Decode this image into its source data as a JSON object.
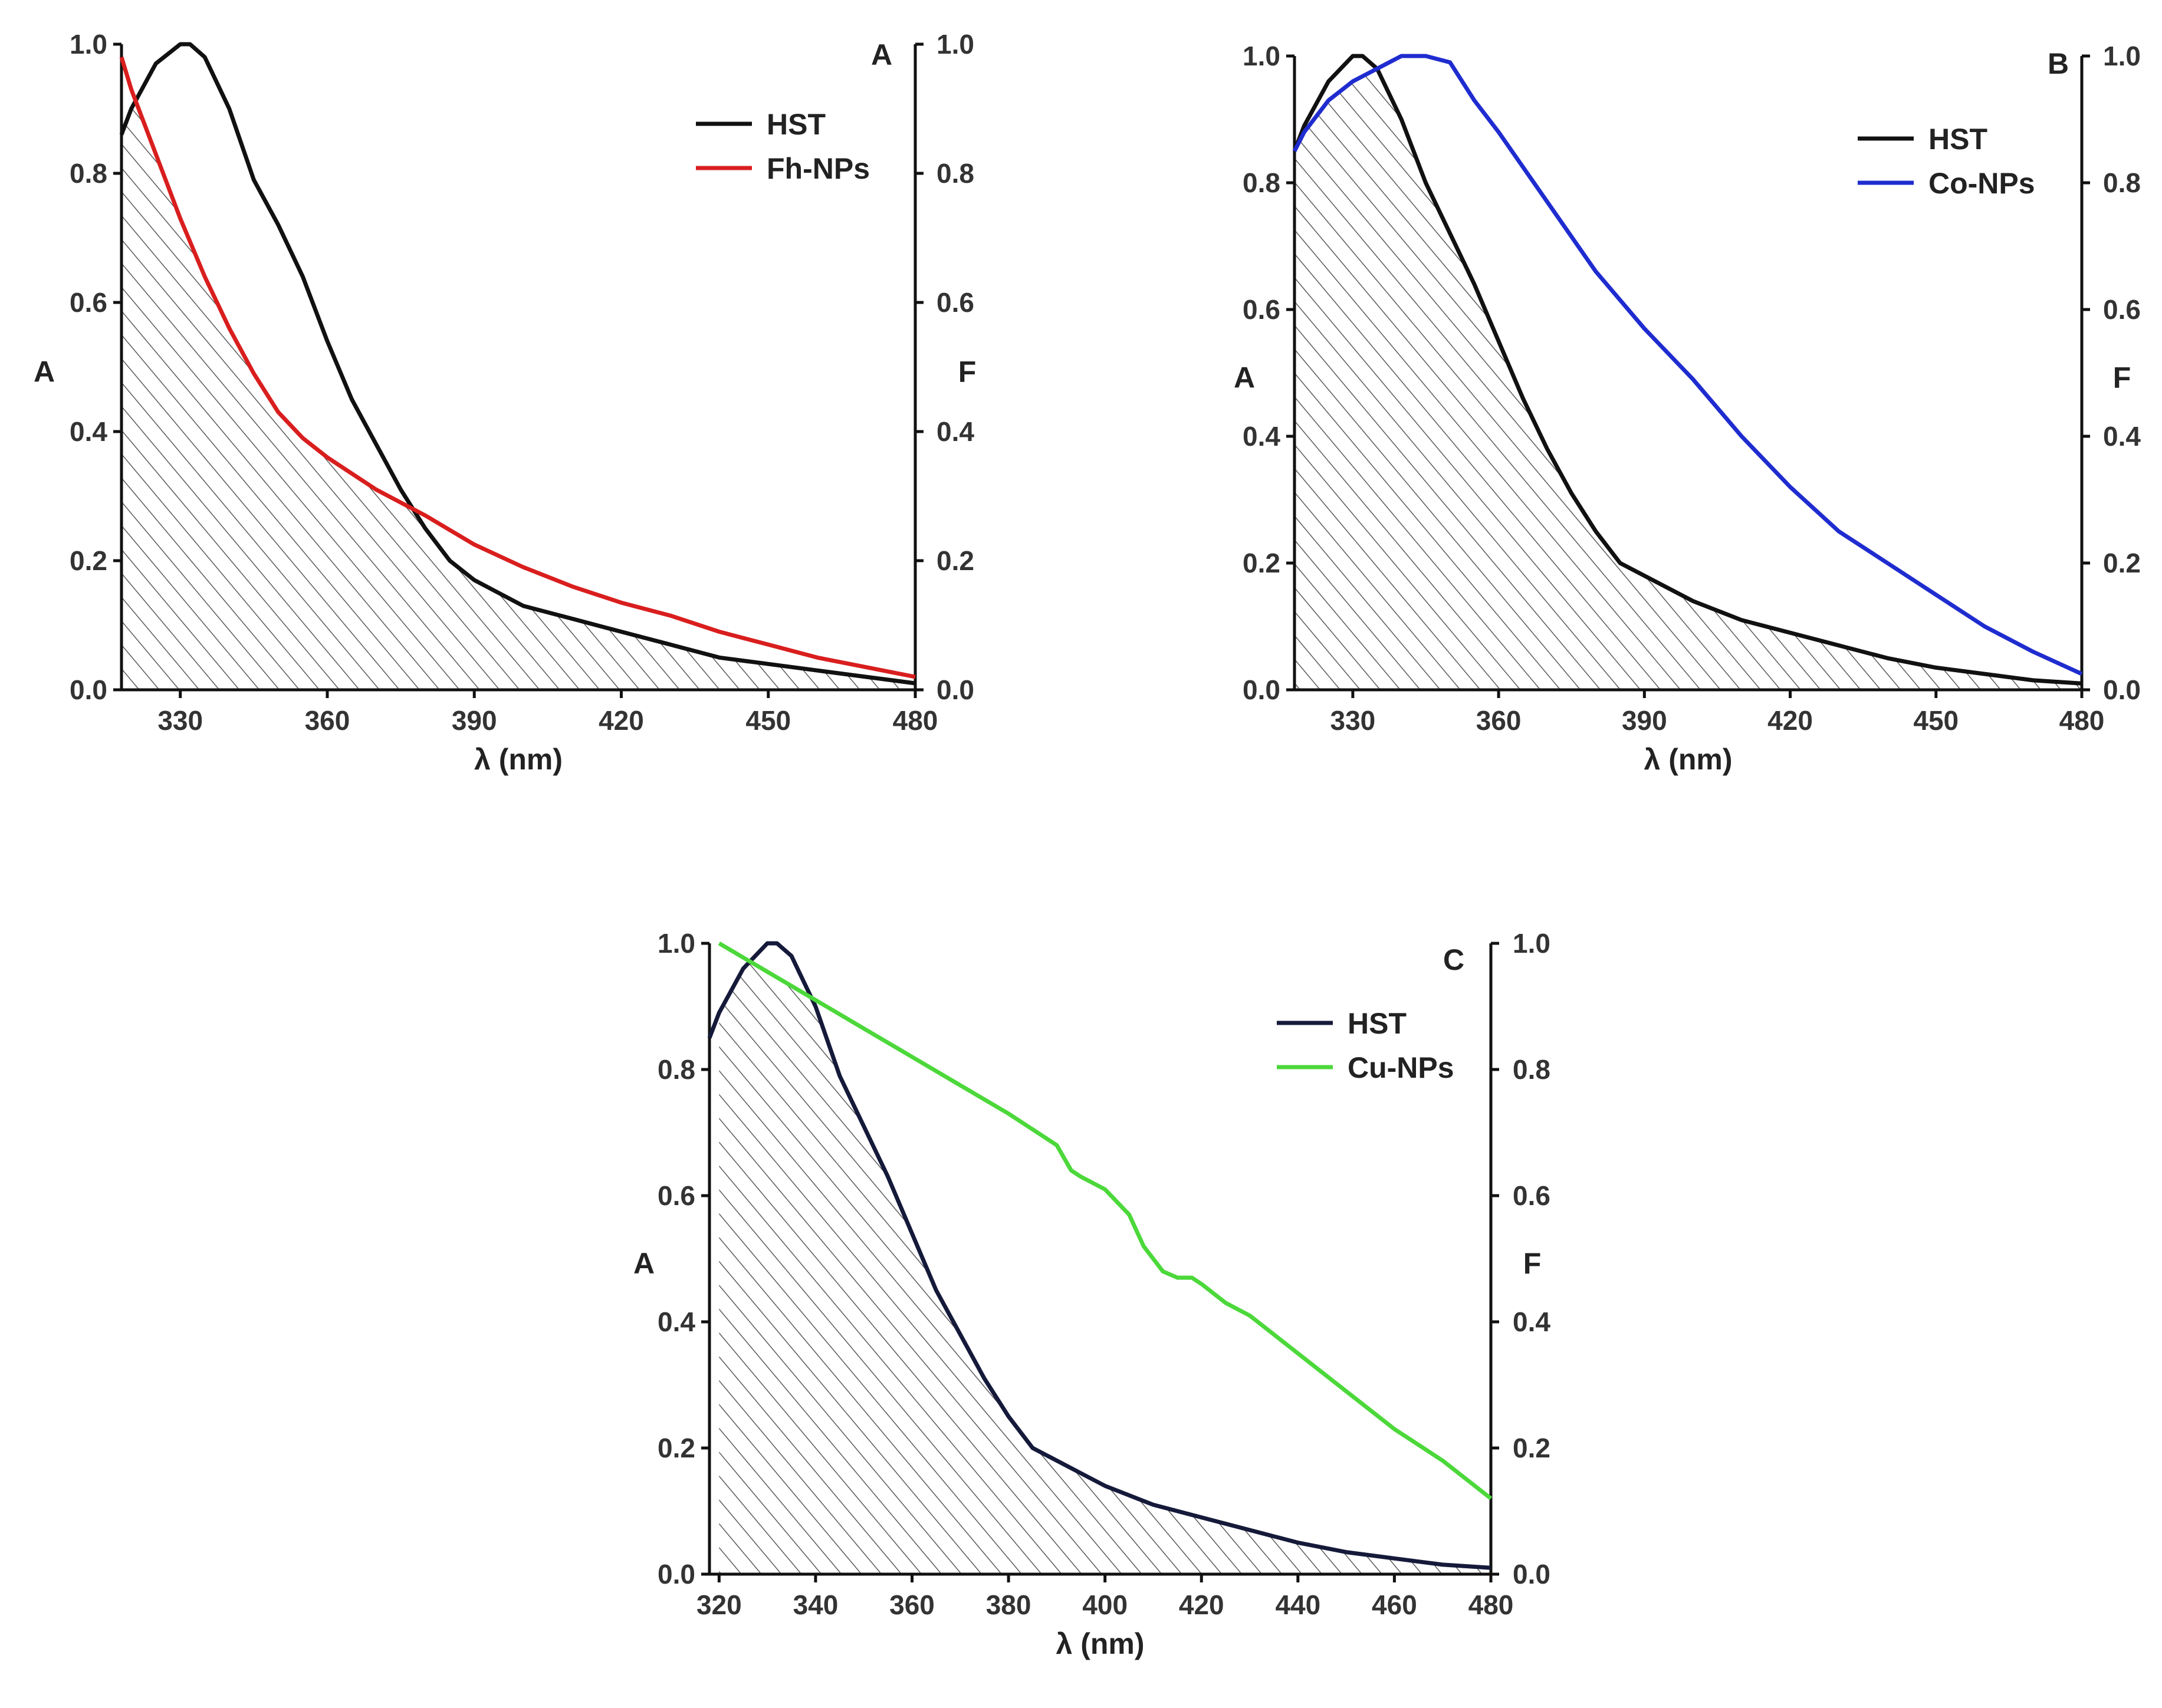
{
  "colors": {
    "hst": "#111111",
    "fh": "#d91e1e",
    "co": "#1f2ccf",
    "cu": "#4cd83a",
    "hatch": "#5a5a5a"
  },
  "chart_data": [
    {
      "type": "line",
      "panel": "A",
      "xlabel": "λ (nm)",
      "ylabel_left": "A",
      "ylabel_right": "F",
      "xlim": [
        318,
        480
      ],
      "ylim": [
        0,
        1.0
      ],
      "xticks": [
        330,
        360,
        390,
        420,
        450,
        480
      ],
      "yticks": [
        0.0,
        0.2,
        0.4,
        0.6,
        0.8,
        1.0
      ],
      "legend_position": "top-right",
      "shaded_overlap": true,
      "series": [
        {
          "name": "HST",
          "color": "#111111",
          "x": [
            318,
            320,
            325,
            330,
            332,
            335,
            340,
            345,
            350,
            355,
            360,
            365,
            370,
            375,
            380,
            385,
            390,
            395,
            400,
            405,
            410,
            420,
            430,
            440,
            450,
            460,
            470,
            480
          ],
          "y": [
            0.86,
            0.9,
            0.97,
            1.0,
            1.0,
            0.98,
            0.9,
            0.79,
            0.72,
            0.64,
            0.54,
            0.45,
            0.38,
            0.31,
            0.25,
            0.2,
            0.17,
            0.15,
            0.13,
            0.12,
            0.11,
            0.09,
            0.07,
            0.05,
            0.04,
            0.03,
            0.02,
            0.01
          ]
        },
        {
          "name": "Fh-NPs",
          "color": "#d91e1e",
          "x": [
            318,
            320,
            325,
            330,
            335,
            340,
            345,
            350,
            355,
            360,
            365,
            370,
            380,
            390,
            400,
            410,
            420,
            430,
            440,
            450,
            460,
            470,
            480
          ],
          "y": [
            0.98,
            0.93,
            0.83,
            0.73,
            0.64,
            0.56,
            0.49,
            0.43,
            0.39,
            0.36,
            0.335,
            0.31,
            0.27,
            0.225,
            0.19,
            0.16,
            0.135,
            0.115,
            0.09,
            0.07,
            0.05,
            0.035,
            0.02
          ]
        }
      ]
    },
    {
      "type": "line",
      "panel": "B",
      "xlabel": "λ (nm)",
      "ylabel_left": "A",
      "ylabel_right": "F",
      "xlim": [
        318,
        480
      ],
      "ylim": [
        0,
        1.0
      ],
      "xticks": [
        330,
        360,
        390,
        420,
        450,
        480
      ],
      "yticks": [
        0.0,
        0.2,
        0.4,
        0.6,
        0.8,
        1.0
      ],
      "legend_position": "top-right",
      "shaded_overlap": true,
      "series": [
        {
          "name": "HST",
          "color": "#111111",
          "x": [
            318,
            320,
            325,
            330,
            332,
            335,
            340,
            345,
            350,
            355,
            360,
            365,
            370,
            375,
            380,
            385,
            390,
            395,
            400,
            405,
            410,
            420,
            430,
            440,
            450,
            460,
            470,
            480
          ],
          "y": [
            0.85,
            0.89,
            0.96,
            1.0,
            1.0,
            0.98,
            0.9,
            0.8,
            0.72,
            0.64,
            0.55,
            0.46,
            0.38,
            0.31,
            0.25,
            0.2,
            0.18,
            0.16,
            0.14,
            0.125,
            0.11,
            0.09,
            0.07,
            0.05,
            0.035,
            0.025,
            0.015,
            0.01
          ]
        },
        {
          "name": "Co-NPs",
          "color": "#1f2ccf",
          "x": [
            318,
            320,
            325,
            330,
            335,
            340,
            345,
            350,
            355,
            360,
            370,
            380,
            390,
            400,
            410,
            420,
            430,
            440,
            450,
            460,
            470,
            480
          ],
          "y": [
            0.85,
            0.88,
            0.93,
            0.96,
            0.98,
            1.0,
            1.0,
            0.99,
            0.93,
            0.88,
            0.77,
            0.66,
            0.57,
            0.49,
            0.4,
            0.32,
            0.25,
            0.2,
            0.15,
            0.1,
            0.06,
            0.025
          ]
        }
      ]
    },
    {
      "type": "line",
      "panel": "C",
      "xlabel": "λ (nm)",
      "ylabel_left": "A",
      "ylabel_right": "F",
      "xlim": [
        318,
        480
      ],
      "ylim": [
        0,
        1.0
      ],
      "xticks": [
        320,
        340,
        360,
        380,
        400,
        420,
        440,
        460,
        480
      ],
      "yticks": [
        0.0,
        0.2,
        0.4,
        0.6,
        0.8,
        1.0
      ],
      "legend_position": "top-right",
      "shaded_overlap": true,
      "series": [
        {
          "name": "HST",
          "color": "#151a3a",
          "x": [
            318,
            320,
            325,
            330,
            332,
            335,
            340,
            345,
            350,
            355,
            360,
            365,
            370,
            375,
            380,
            385,
            390,
            395,
            400,
            405,
            410,
            420,
            430,
            440,
            450,
            460,
            470,
            480
          ],
          "y": [
            0.85,
            0.89,
            0.96,
            1.0,
            1.0,
            0.98,
            0.9,
            0.79,
            0.71,
            0.63,
            0.54,
            0.45,
            0.38,
            0.31,
            0.25,
            0.2,
            0.18,
            0.16,
            0.14,
            0.125,
            0.11,
            0.09,
            0.07,
            0.05,
            0.035,
            0.025,
            0.015,
            0.01
          ]
        },
        {
          "name": "Cu-NPs",
          "color": "#4cd83a",
          "x": [
            320,
            330,
            340,
            350,
            360,
            370,
            380,
            390,
            393,
            395,
            400,
            405,
            408,
            412,
            415,
            418,
            420,
            425,
            430,
            440,
            450,
            460,
            470,
            480
          ],
          "y": [
            1.0,
            0.955,
            0.91,
            0.865,
            0.82,
            0.775,
            0.73,
            0.68,
            0.64,
            0.63,
            0.61,
            0.57,
            0.52,
            0.48,
            0.47,
            0.47,
            0.46,
            0.43,
            0.41,
            0.35,
            0.29,
            0.23,
            0.18,
            0.12
          ]
        }
      ]
    }
  ]
}
